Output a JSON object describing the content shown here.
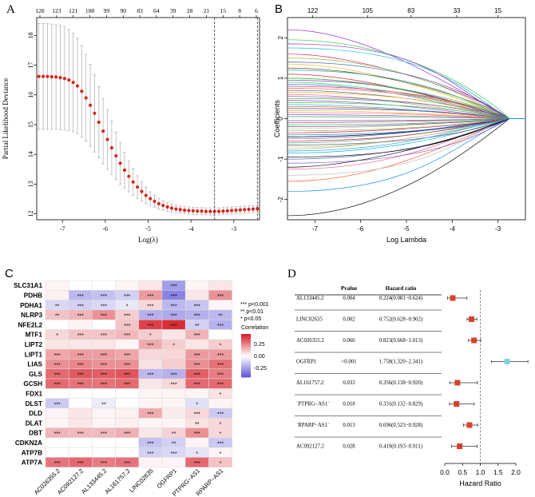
{
  "chart_data": [
    {
      "panel": "A",
      "type": "line",
      "xlabel": "Log(λ)",
      "ylabel": "Partial Likelihood Deviance",
      "xlim": [
        -7.6,
        -2.4
      ],
      "ylim": [
        11.8,
        18.6
      ],
      "x_ticks": [
        -7,
        -6,
        -5,
        -4,
        -3
      ],
      "y_ticks": [
        12,
        13,
        14,
        15,
        16,
        17,
        18
      ],
      "top_ticks": [
        "128",
        "123",
        "121",
        "108",
        "99",
        "90",
        "83",
        "64",
        "39",
        "28",
        "21",
        "15",
        "8",
        "6"
      ],
      "vlines": [
        -3.45,
        -2.45
      ],
      "x": [
        -7.55,
        -7.45,
        -7.35,
        -7.25,
        -7.15,
        -7.05,
        -6.95,
        -6.85,
        -6.75,
        -6.65,
        -6.55,
        -6.45,
        -6.35,
        -6.25,
        -6.15,
        -6.05,
        -5.95,
        -5.85,
        -5.75,
        -5.65,
        -5.55,
        -5.45,
        -5.35,
        -5.25,
        -5.15,
        -5.05,
        -4.95,
        -4.85,
        -4.75,
        -4.65,
        -4.55,
        -4.45,
        -4.35,
        -4.25,
        -4.15,
        -4.05,
        -3.95,
        -3.85,
        -3.75,
        -3.65,
        -3.55,
        -3.45,
        -3.35,
        -3.25,
        -3.15,
        -3.05,
        -2.95,
        -2.85,
        -2.75,
        -2.65,
        -2.55,
        -2.45
      ],
      "y": [
        16.62,
        16.62,
        16.62,
        16.61,
        16.6,
        16.58,
        16.55,
        16.5,
        16.42,
        16.3,
        16.12,
        15.9,
        15.65,
        15.38,
        15.08,
        14.78,
        14.5,
        14.22,
        13.95,
        13.7,
        13.47,
        13.26,
        13.07,
        12.9,
        12.75,
        12.62,
        12.51,
        12.42,
        12.34,
        12.28,
        12.23,
        12.19,
        12.16,
        12.14,
        12.12,
        12.11,
        12.1,
        12.09,
        12.09,
        12.08,
        12.08,
        12.08,
        12.08,
        12.09,
        12.1,
        12.11,
        12.12,
        12.13,
        12.14,
        12.15,
        12.16,
        12.17
      ],
      "err": [
        1.78,
        1.78,
        1.78,
        1.77,
        1.76,
        1.75,
        1.73,
        1.7,
        1.66,
        1.6,
        1.54,
        1.46,
        1.38,
        1.3,
        1.2,
        1.1,
        1.0,
        0.9,
        0.8,
        0.7,
        0.6,
        0.52,
        0.45,
        0.38,
        0.32,
        0.27,
        0.23,
        0.2,
        0.18,
        0.16,
        0.15,
        0.14,
        0.13,
        0.12,
        0.12,
        0.12,
        0.12,
        0.12,
        0.12,
        0.12,
        0.12,
        0.12,
        0.12,
        0.12,
        0.12,
        0.12,
        0.12,
        0.12,
        0.12,
        0.12,
        0.12,
        0.12
      ]
    },
    {
      "panel": "B",
      "type": "line",
      "xlabel": "Log Lambda",
      "ylabel": "Coefficients",
      "xlim": [
        -7.6,
        -2.4
      ],
      "ylim": [
        -2.5,
        2.5
      ],
      "x_ticks": [
        -7,
        -6,
        -5,
        -4,
        -3
      ],
      "y_ticks": [
        -2,
        -1,
        0,
        1,
        2
      ],
      "top_ticks": [
        "122",
        "105",
        "83",
        "33",
        "15"
      ],
      "top_tick_x": [
        -7.05,
        -5.85,
        -4.9,
        -3.9,
        -3.0
      ],
      "converge_x": -2.75,
      "series_start_values": [
        2.2,
        -2.4,
        1.95,
        -1.8,
        1.75,
        1.6,
        -1.55,
        1.5,
        1.4,
        -1.4,
        1.35,
        1.25,
        -1.25,
        1.2,
        -1.1,
        1.1,
        1.0,
        -1.0,
        0.95,
        -0.95,
        0.9,
        0.85,
        -0.85,
        0.8,
        0.75,
        -0.75,
        0.7,
        -0.7,
        0.65,
        -0.65,
        0.6,
        -0.6,
        0.55,
        -0.55,
        0.5,
        -0.5,
        0.45,
        -0.45,
        0.4,
        -0.4,
        0.35,
        -0.35,
        0.3,
        -0.3,
        0.25,
        -0.25,
        0.2,
        -0.2,
        0.15,
        -0.15,
        0.1,
        -0.1,
        0.05,
        -0.05,
        1.85,
        -1.2,
        1.0,
        -0.8
      ]
    },
    {
      "panel": "C",
      "type": "heatmap",
      "rows": [
        "SLC31A1",
        "PDHB",
        "PDHA1",
        "NLRP3",
        "NFE2L2",
        "MTF1",
        "LIPT2",
        "LIPT1",
        "LIAS",
        "GLS",
        "GCSH",
        "FDX1",
        "DLST",
        "DLD",
        "DLAT",
        "DBT",
        "CDKN2A",
        "ATP7B",
        "ATP7A"
      ],
      "columns": [
        "AC026355.2",
        "AC092127.2",
        "AL133445.2",
        "AL161757.2",
        "LINC02635",
        "OGFRP1",
        "PTPRG−AS1",
        "RPARP−AS1"
      ],
      "values": [
        [
          0.02,
          0.0,
          0.0,
          0.02,
          0.05,
          -0.25,
          0.02,
          0.05
        ],
        [
          0.03,
          -0.18,
          -0.16,
          -0.12,
          0.2,
          -0.32,
          0.05,
          0.22
        ],
        [
          -0.1,
          -0.12,
          -0.1,
          -0.06,
          0.08,
          -0.18,
          -0.15,
          0.02
        ],
        [
          0.12,
          0.15,
          0.22,
          0.1,
          -0.2,
          -0.22,
          -0.2,
          -0.18
        ],
        [
          0.0,
          0.02,
          0.0,
          0.12,
          0.38,
          0.42,
          -0.12,
          -0.2
        ],
        [
          0.08,
          0.12,
          0.12,
          0.14,
          0.1,
          0.05,
          0.15,
          0.0
        ],
        [
          0.05,
          0.05,
          0.05,
          0.02,
          0.17,
          0.1,
          0.05,
          0.1
        ],
        [
          0.18,
          0.2,
          0.2,
          0.18,
          0.08,
          0.08,
          0.2,
          0.2
        ],
        [
          0.22,
          0.24,
          0.22,
          0.22,
          0.06,
          0.1,
          0.22,
          0.28
        ],
        [
          0.3,
          0.33,
          0.32,
          0.34,
          -0.18,
          -0.2,
          0.32,
          0.26
        ],
        [
          0.3,
          0.28,
          0.28,
          0.3,
          0.05,
          0.08,
          0.3,
          0.3
        ],
        [
          0.0,
          0.0,
          0.0,
          0.0,
          0.02,
          0.02,
          0.02,
          0.06
        ],
        [
          -0.14,
          0.0,
          -0.05,
          0.0,
          0.02,
          0.02,
          -0.08,
          0.02
        ],
        [
          0.02,
          0.05,
          0.02,
          0.03,
          0.17,
          0.04,
          0.08,
          -0.14
        ],
        [
          0.02,
          0.05,
          0.02,
          0.03,
          0.02,
          0.02,
          0.06,
          0.08
        ],
        [
          0.15,
          0.14,
          0.14,
          0.16,
          0.05,
          0.09,
          0.22,
          0.08
        ],
        [
          0.0,
          0.0,
          0.0,
          0.0,
          -0.16,
          -0.12,
          0.02,
          -0.14
        ],
        [
          0.0,
          0.0,
          0.0,
          0.0,
          -0.12,
          -0.1,
          -0.07,
          0.02
        ],
        [
          0.28,
          0.3,
          0.26,
          0.28,
          0.02,
          0.02,
          0.3,
          0.12
        ]
      ],
      "stars": [
        [
          "",
          "",
          "",
          "",
          "",
          "***",
          "",
          ""
        ],
        [
          "",
          "***",
          "***",
          "***",
          "***",
          "***",
          "",
          "***"
        ],
        [
          "**",
          "***",
          "***",
          "*",
          "***",
          "***",
          "***",
          ""
        ],
        [
          "**",
          "***",
          "***",
          "***",
          "***",
          "***",
          "***",
          "**"
        ],
        [
          "",
          "",
          "",
          "***",
          "***",
          "***",
          "**",
          "***"
        ],
        [
          "*",
          "***",
          "***",
          "***",
          "*",
          "",
          "***",
          ""
        ],
        [
          "",
          "",
          "",
          "",
          "***",
          "*",
          "",
          "*"
        ],
        [
          "***",
          "***",
          "***",
          "***",
          "",
          "",
          "***",
          "***"
        ],
        [
          "***",
          "***",
          "***",
          "***",
          "",
          "",
          "***",
          "***"
        ],
        [
          "***",
          "***",
          "***",
          "***",
          "***",
          "***",
          "***",
          "***"
        ],
        [
          "***",
          "***",
          "***",
          "***",
          "",
          "***",
          "***",
          "***"
        ],
        [
          "",
          "",
          "",
          "",
          "",
          "",
          "",
          "*"
        ],
        [
          "***",
          "",
          "**",
          "",
          "",
          "",
          "*",
          ""
        ],
        [
          "",
          "",
          "",
          "",
          "***",
          "",
          "***",
          "***"
        ],
        [
          "",
          "",
          "",
          "",
          "",
          "",
          "**",
          "*"
        ],
        [
          "***",
          "***",
          "***",
          "***",
          "",
          "**",
          "***",
          "*"
        ],
        [
          "",
          "",
          "",
          "",
          "***",
          "**",
          "",
          "***"
        ],
        [
          "",
          "",
          "",
          "",
          "***",
          "***",
          "*",
          "*"
        ],
        [
          "***",
          "***",
          "***",
          "***",
          "",
          "",
          "***",
          "*"
        ]
      ],
      "legend_sig": [
        "*** p<0.001",
        "** p<0.01",
        "* p<0.05"
      ],
      "colorbar_title": "Correlation",
      "colorbar_ticks": [
        "0.25",
        "0.00",
        "-0.25"
      ],
      "colorbar_tick_values": [
        0.25,
        0.0,
        -0.25
      ]
    },
    {
      "panel": "D",
      "type": "scatter",
      "subtype": "forest",
      "headers": {
        "pvalue": "Pvalue",
        "hr": "Hazard ratio"
      },
      "xlabel": "Hazard Ratio",
      "xlim": [
        0.0,
        2.0
      ],
      "x_ticks": [
        "0.0",
        "0.5",
        "1.0",
        "1.5",
        "2.0"
      ],
      "ref_line": 1.0,
      "rows": [
        {
          "gene": "AL133445.2",
          "p": "0.004",
          "hr_text": "0.224(0.081−0.624)",
          "hr": 0.224,
          "lo": 0.081,
          "hi": 0.624
        },
        {
          "gene": "LINC02635",
          "p": "0.002",
          "hr_text": "0.752(0.628−0.902)",
          "hr": 0.752,
          "lo": 0.628,
          "hi": 0.902
        },
        {
          "gene": "AC026355.2",
          "p": "0.066",
          "hr_text": "0.823(0.668−1.013)",
          "hr": 0.823,
          "lo": 0.668,
          "hi": 1.013
        },
        {
          "gene": "OGFRP1",
          "p": "<0.001",
          "hr_text": "1.758(1.320−2.341)",
          "hr": 1.758,
          "lo": 1.32,
          "hi": 2.341
        },
        {
          "gene": "AL161757.2",
          "p": "0.033",
          "hr_text": "0.356(0.138−0.920)",
          "hr": 0.356,
          "lo": 0.138,
          "hi": 0.92
        },
        {
          "gene": "`PTPRG−AS1`",
          "p": "0.018",
          "hr_text": "0.331(0.132−0.829)",
          "hr": 0.331,
          "lo": 0.132,
          "hi": 0.829
        },
        {
          "gene": "`RPARP−AS1`",
          "p": "0.013",
          "hr_text": "0.696(0.523−0.928)",
          "hr": 0.696,
          "lo": 0.523,
          "hi": 0.928
        },
        {
          "gene": "AC092127.2",
          "p": "0.028",
          "hr_text": "0.419(0.193−0.911)",
          "hr": 0.419,
          "lo": 0.193,
          "hi": 0.911
        }
      ],
      "colors": {
        "protective": "#d9412b",
        "risk": "#7fd3e0"
      }
    }
  ],
  "panel_labels": [
    "A",
    "B",
    "C",
    "D"
  ]
}
